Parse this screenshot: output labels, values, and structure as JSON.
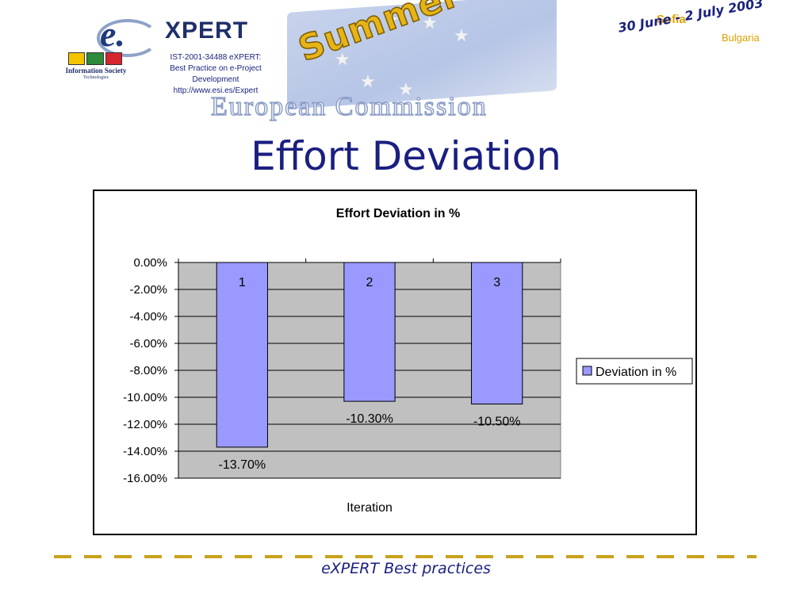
{
  "header": {
    "logo_letter": "e.",
    "logo_word": "XPERT",
    "info_society_line1": "Information Society",
    "info_society_line2": "Technologies",
    "project_line1": "IST-2001-34488 eXPERT:",
    "project_line2": "Best Practice on e-Project Development",
    "project_url": "http://www.esi.es/Expert",
    "event_name": "Summer School",
    "commission": "European Commission",
    "event_city": "Sofia",
    "event_dates": "30 June - 2 July 2003",
    "event_country": "Bulgaria"
  },
  "slide": {
    "title": "Effort Deviation"
  },
  "footer": {
    "text": "eXPERT Best practices"
  },
  "colors": {
    "bar_fill": "#9999ff",
    "plot_bg": "#c0c0c0",
    "title_blue": "#1a1f80",
    "accent_gold": "#c9a21a"
  },
  "chart_data": {
    "type": "bar",
    "title": "Effort Deviation in %",
    "xlabel": "Iteration",
    "ylabel": "",
    "categories": [
      "1",
      "2",
      "3"
    ],
    "series": [
      {
        "name": "Deviation in %",
        "values": [
          -13.7,
          -10.3,
          -10.5
        ],
        "data_labels": [
          "-13.70%",
          "-10.30%",
          "-10.50%"
        ]
      }
    ],
    "ylim": [
      -16,
      0
    ],
    "y_ticks": [
      "0.00%",
      "-2.00%",
      "-4.00%",
      "-6.00%",
      "-8.00%",
      "-10.00%",
      "-12.00%",
      "-14.00%",
      "-16.00%"
    ],
    "grid": true,
    "legend_position": "right"
  }
}
